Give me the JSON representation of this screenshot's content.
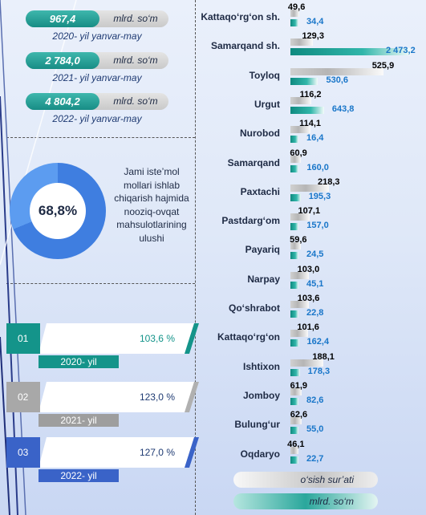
{
  "stats": [
    {
      "value": "967,4",
      "unit": "mlrd. so‘m",
      "period": "2020- yil yanvar-may"
    },
    {
      "value": "2 784,0",
      "unit": "mlrd. so‘m",
      "period": "2021- yil yanvar-may"
    },
    {
      "value": "4 804,2",
      "unit": "mlrd. so‘m",
      "period": "2022- yil yanvar-may"
    }
  ],
  "share": {
    "percent_label": "68,8%",
    "percent": 68.8,
    "description": "Jami iste’mol mollari ishlab chiqarish hajmida nooziq-ovqat mahsulotlarining ulushi"
  },
  "growth": [
    {
      "num": "01",
      "value": "103,6 %",
      "year": "2020- yil",
      "color": "#14948a"
    },
    {
      "num": "02",
      "value": "123,0 %",
      "year": "2021- yil",
      "color": "#9e9e9e"
    },
    {
      "num": "03",
      "value": "127,0 %",
      "year": "2022- yil",
      "color": "#3a63c8"
    }
  ],
  "chart_data": {
    "type": "bar",
    "orientation": "horizontal",
    "categories": [
      "Kattaqo‘rg‘on sh.",
      "Samarqand sh.",
      "Toyloq",
      "Urgut",
      "Nurobod",
      "Samarqand",
      "Paxtachi",
      "Pastdarg‘om",
      "Payariq",
      "Narpay",
      "Qo‘shrabot",
      "Kattaqo‘rg‘on",
      "Ishtixon",
      "Jomboy",
      "Bulung‘ur",
      "Oqdaryo"
    ],
    "series": [
      {
        "name": "o‘sish sur’ati",
        "color": "#bdbdbd",
        "values": [
          49.6,
          129.3,
          525.9,
          116.2,
          114.1,
          60.9,
          218.3,
          107.1,
          59.6,
          103.0,
          103.6,
          101.6,
          188.1,
          61.9,
          62.6,
          46.1
        ],
        "labels": [
          "49,6",
          "129,3",
          "525,9",
          "116,2",
          "114,1",
          "60,9",
          "218,3",
          "107,1",
          "59,6",
          "103,0",
          "103,6",
          "101,6",
          "188,1",
          "61,9",
          "62,6",
          "46,1"
        ]
      },
      {
        "name": "mlrd. so‘m",
        "color": "#1a9b90",
        "values": [
          34.4,
          2473.2,
          530.6,
          643.8,
          16.4,
          160.0,
          195.3,
          157.0,
          24.5,
          45.1,
          22.8,
          162.4,
          178.3,
          82.6,
          55.0,
          22.7
        ],
        "labels": [
          "34,4",
          "2 473,2",
          "530,6",
          "643,8",
          "16,4",
          "160,0",
          "195,3",
          "157,0",
          "24,5",
          "45,1",
          "22,8",
          "162,4",
          "178,3",
          "82,6",
          "55,0",
          "22,7"
        ]
      }
    ],
    "legend": [
      "o‘sish sur’ati",
      "mlrd. so‘m"
    ]
  }
}
